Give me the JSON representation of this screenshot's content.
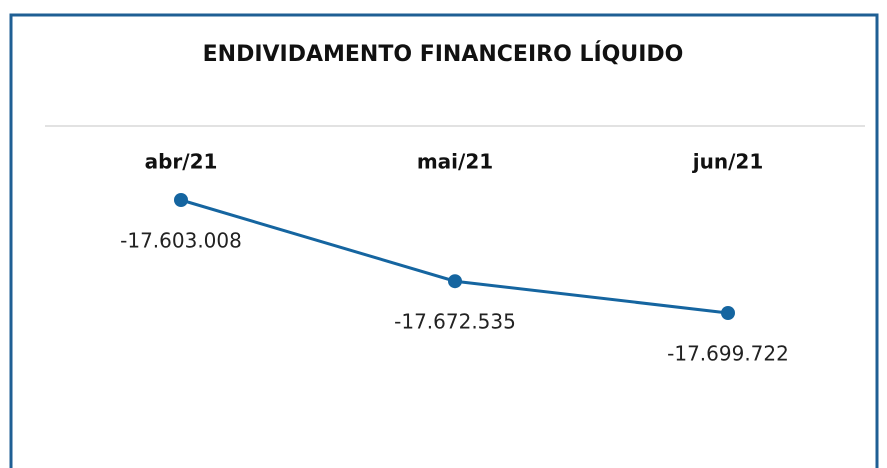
{
  "chart_data": {
    "type": "line",
    "title": "ENDIVIDAMENTO FINANCEIRO LÍQUIDO",
    "categories": [
      "abr/21",
      "mai/21",
      "jun/21"
    ],
    "values": [
      -17603008,
      -17672535,
      -17699722
    ],
    "value_labels": [
      "-17.603.008",
      "-17.672.535",
      "-17.699.722"
    ],
    "color": "#1565a0"
  }
}
